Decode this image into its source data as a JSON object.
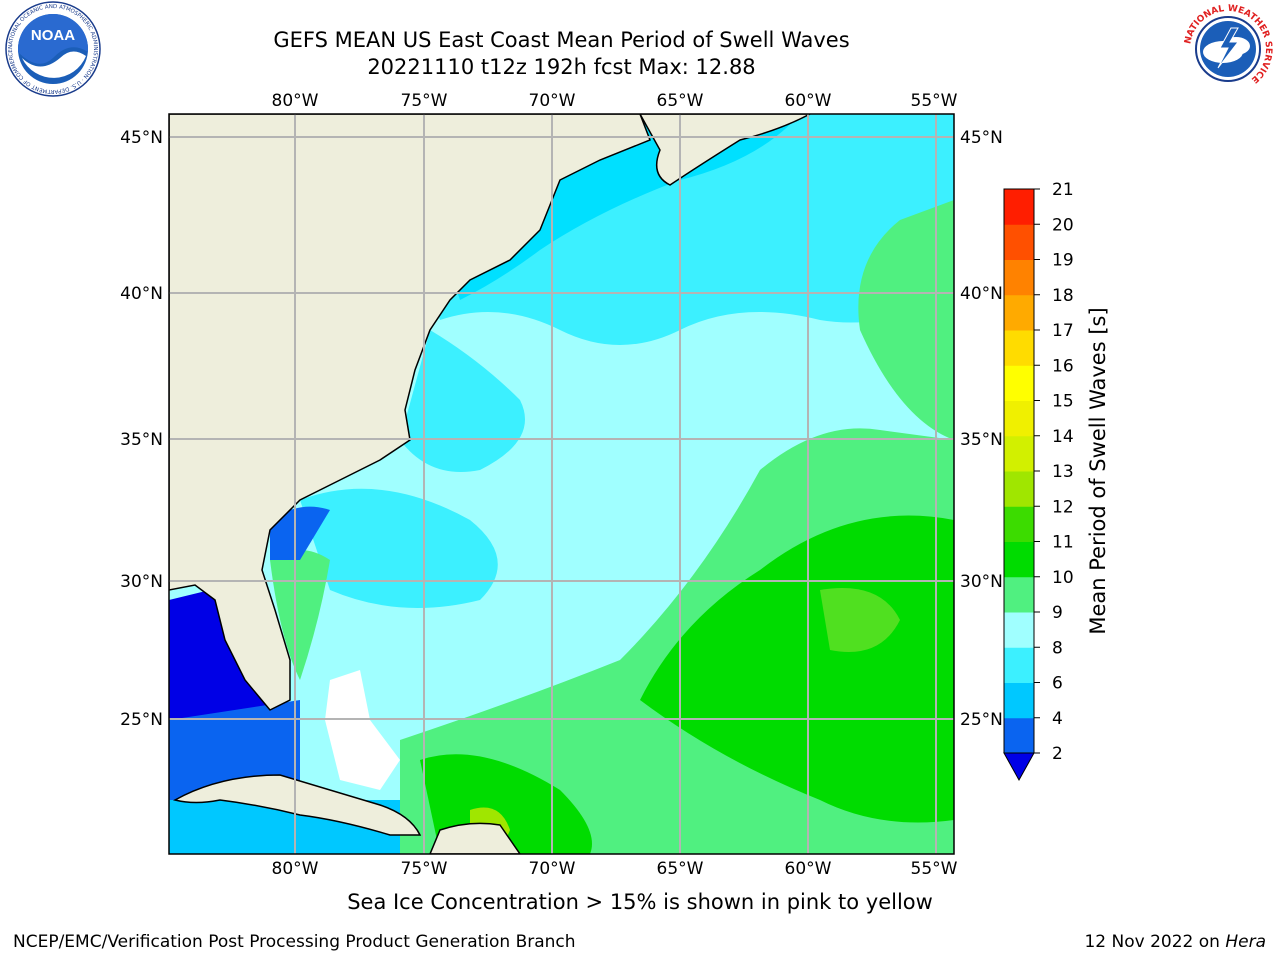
{
  "title": {
    "line1": "GEFS MEAN US East Coast Mean Period of Swell Waves",
    "line2": "20221110 t12z 192h fcst   Max: 12.88"
  },
  "logos": {
    "left": "noaa-logo",
    "left_text": "NOAA",
    "left_ring_text": "NATIONAL OCEANIC AND ATMOSPHERIC ADMINISTRATION · U.S. DEPARTMENT OF COMMERCE",
    "right": "national-weather-service-logo",
    "right_ring_text": "NATIONAL WEATHER SERVICE"
  },
  "map": {
    "lon_ticks": [
      "80°W",
      "75°W",
      "70°W",
      "65°W",
      "60°W",
      "55°W"
    ],
    "lat_ticks": [
      "45°N",
      "40°N",
      "35°N",
      "30°N",
      "25°N"
    ],
    "lon_range": [
      -85,
      -54.3
    ],
    "lat_range": [
      20.5,
      45.8
    ],
    "grid": true
  },
  "colorbar": {
    "label": "Mean Period of Swell Waves [s]",
    "levels": [
      "2",
      "4",
      "6",
      "8",
      "9",
      "10",
      "11",
      "12",
      "13",
      "14",
      "15",
      "16",
      "17",
      "18",
      "19",
      "20",
      "21"
    ],
    "colors": [
      "#0a64f0",
      "#00c8ff",
      "#3cf0ff",
      "#a0ffff",
      "#50f080",
      "#00dc00",
      "#3cdc00",
      "#a0e600",
      "#d2f000",
      "#f0f000",
      "#ffff00",
      "#ffdc00",
      "#ffaa00",
      "#ff8200",
      "#ff5000",
      "#ff1e00"
    ],
    "extend_color": "#0000e6",
    "land_color": "#eeeedc"
  },
  "footer": {
    "note": "Sea Ice Concentration > 15% is shown in pink to yellow",
    "left": "NCEP/EMC/Verification Post Processing Product Generation Branch",
    "right_date": "12 Nov 2022 on ",
    "right_machine": "Hera"
  }
}
